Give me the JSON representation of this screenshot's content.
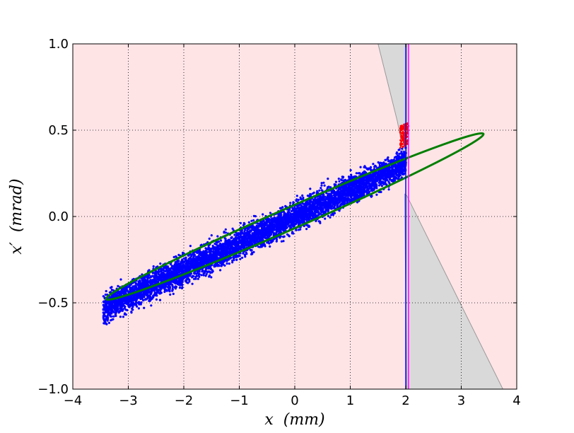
{
  "chart_data": {
    "type": "scatter",
    "title": "",
    "xlabel": "x  (mm)",
    "ylabel": "x′  (mrad)",
    "xlim": [
      -4,
      4
    ],
    "ylim": [
      -1.0,
      1.0
    ],
    "xticks": [
      -4,
      -3,
      -2,
      -1,
      0,
      1,
      2,
      3,
      4
    ],
    "xtick_labels": [
      "−4",
      "−3",
      "−2",
      "−1",
      "0",
      "1",
      "2",
      "3",
      "4"
    ],
    "yticks": [
      -1.0,
      -0.5,
      0.0,
      0.5,
      1.0
    ],
    "ytick_labels": [
      "−1.0",
      "−0.5",
      "0.0",
      "0.5",
      "1.0"
    ],
    "grid": true,
    "legend": "none",
    "colors": {
      "accepted_region": "#ffe4e6",
      "rejected_region": "#d9d9d9",
      "particles": "#0000ff",
      "ellipse": "#007f00",
      "cut_particles": "#ff0000",
      "vertical_line_1": "#0000ff",
      "vertical_line_2": "#ff00ff"
    },
    "particle_distribution": {
      "x_range": [
        -3.45,
        2.0
      ],
      "slope_mrad_per_mm": 0.155,
      "intercept_mrad": 0.0,
      "half_width_mrad": 0.075,
      "approx_count": 6000
    },
    "ellipse": {
      "center": [
        0.0,
        0.0
      ],
      "x_extent": [
        -3.4,
        3.4
      ],
      "y_extent": [
        -0.52,
        0.52
      ],
      "semi_major_axis_mm": 3.38,
      "semi_minor_axis_mrad": 0.08
    },
    "rejected_region": {
      "upper_boundary": [
        [
          1.5,
          1.0
        ],
        [
          1.85,
          0.55
        ],
        [
          1.98,
          0.33
        ],
        [
          2.02,
          0.3
        ],
        [
          2.02,
          1.0
        ]
      ],
      "lower_boundary": [
        [
          1.98,
          0.13
        ],
        [
          2.02,
          0.12
        ],
        [
          3.75,
          -1.0
        ],
        [
          2.02,
          -1.0
        ]
      ]
    },
    "vertical_lines_x": [
      2.0,
      2.05
    ],
    "cut_particles_x_range": [
      1.9,
      2.05
    ]
  }
}
